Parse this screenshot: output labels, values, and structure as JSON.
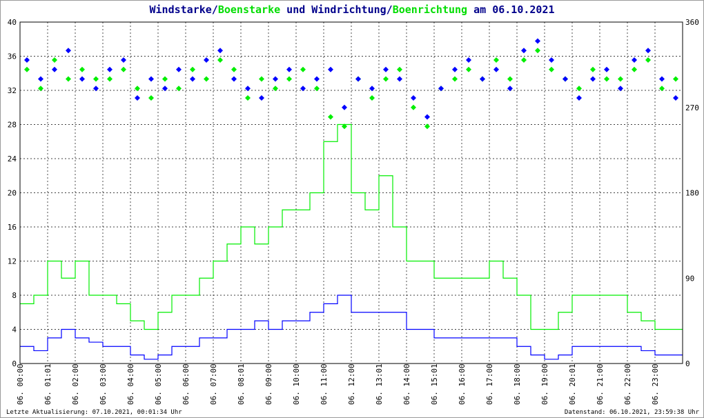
{
  "title": {
    "part1": "Windstarke/",
    "part2": "Boenstarke",
    "part3": " und Windrichtung/",
    "part4": "Boenrichtung",
    "part5": " am 06.10.2021"
  },
  "footer": {
    "left": "Letzte Aktualisierung: 07.10.2021, 00:01:34 Uhr",
    "right": "Datenstand: 06.10.2021, 23:59:38 Uhr"
  },
  "colors": {
    "wind": "#0000ff",
    "gust": "#00ee00",
    "grid": "#000000"
  },
  "chart_data": {
    "type": "line",
    "title": "Windstarke/Boenstarke und Windrichtung/Boenrichtung am 06.10.2021",
    "x_unit": "hours (half-hour samples)",
    "xticks": [
      "06. 00:00",
      "06. 01:01",
      "06. 02:00",
      "06. 03:00",
      "06. 04:00",
      "06. 05:00",
      "06. 06:00",
      "06. 07:00",
      "06. 08:01",
      "06. 09:00",
      "06. 10:00",
      "06. 11:00",
      "06. 12:00",
      "06. 13:01",
      "06. 14:00",
      "06. 15:01",
      "06. 16:00",
      "06. 17:00",
      "06. 18:00",
      "06. 19:00",
      "06. 20:01",
      "06. 21:00",
      "06. 22:00",
      "06. 23:00"
    ],
    "yticks_left": [
      "0",
      "4",
      "8",
      "12",
      "16",
      "20",
      "24",
      "28",
      "32",
      "36",
      "40"
    ],
    "yticks_right": [
      "0",
      "90",
      "180",
      "270",
      "360"
    ],
    "ylim_left": [
      0,
      40
    ],
    "ylim_right": [
      0,
      360
    ],
    "series": [
      {
        "name": "Windstarke",
        "values": [
          2,
          1.5,
          3,
          4,
          3,
          2.5,
          2,
          2,
          1,
          0.5,
          1,
          2,
          2,
          3,
          3,
          4,
          4,
          5,
          4,
          5,
          5,
          6,
          7,
          8,
          6,
          6,
          6,
          6,
          4,
          4,
          3,
          3,
          3,
          3,
          3,
          3,
          2,
          1,
          0.5,
          1,
          2,
          2,
          2,
          2,
          2,
          1.5,
          1,
          1
        ]
      },
      {
        "name": "Boenstarke",
        "values": [
          7,
          8,
          12,
          10,
          12,
          8,
          8,
          7,
          5,
          4,
          6,
          8,
          8,
          10,
          12,
          14,
          16,
          14,
          16,
          18,
          18,
          20,
          26,
          28,
          20,
          18,
          22,
          16,
          12,
          12,
          10,
          10,
          10,
          10,
          12,
          10,
          8,
          4,
          4,
          6,
          8,
          8,
          8,
          8,
          6,
          5,
          4,
          4
        ]
      },
      {
        "name": "Windrichtung",
        "values": [
          320,
          300,
          310,
          330,
          300,
          290,
          310,
          320,
          280,
          300,
          290,
          310,
          300,
          320,
          330,
          300,
          290,
          280,
          300,
          310,
          290,
          300,
          310,
          270,
          300,
          290,
          310,
          300,
          280,
          260,
          290,
          310,
          320,
          300,
          310,
          290,
          330,
          340,
          320,
          300,
          280,
          300,
          310,
          290,
          320,
          330,
          300,
          280
        ]
      },
      {
        "name": "Boenrichtung",
        "values": [
          310,
          290,
          320,
          300,
          310,
          300,
          300,
          310,
          290,
          280,
          300,
          290,
          310,
          300,
          320,
          310,
          280,
          300,
          290,
          300,
          310,
          290,
          260,
          250,
          300,
          280,
          300,
          310,
          270,
          250,
          290,
          300,
          310,
          300,
          320,
          300,
          320,
          330,
          310,
          300,
          290,
          310,
          300,
          300,
          310,
          320,
          290,
          300
        ]
      }
    ]
  }
}
